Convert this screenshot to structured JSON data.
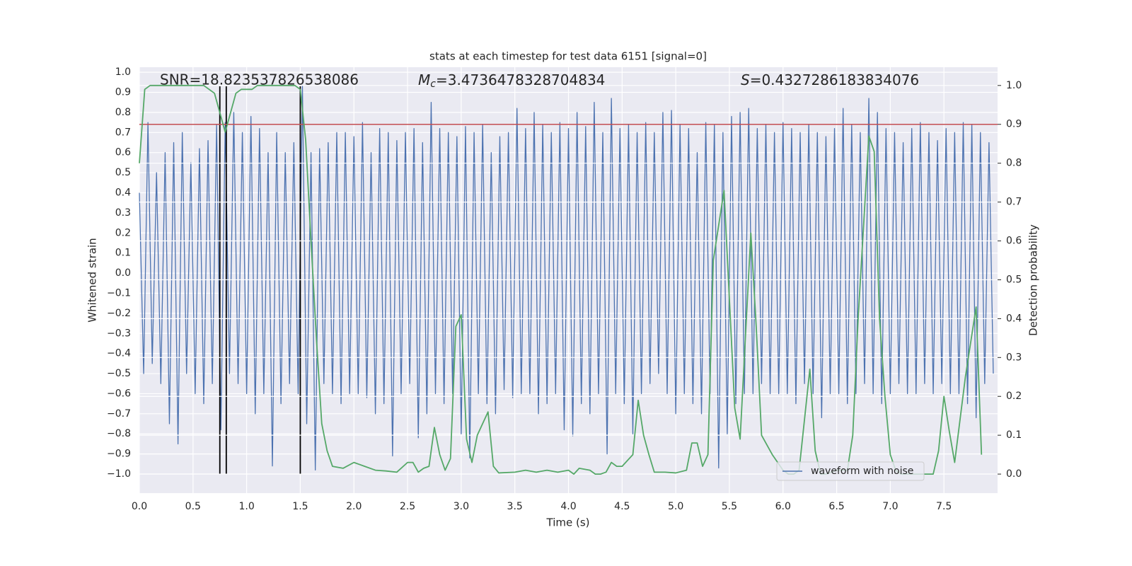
{
  "chart_data": {
    "type": "line",
    "title": "stats at each timestep for test data 6151 [signal=0]",
    "xlabel": "Time (s)",
    "ylabel": "Whitened strain",
    "y2label": "Detection probability",
    "annotations": [
      {
        "text": "SNR=18.823537826538086"
      },
      {
        "symbol": "M",
        "subscript": "c",
        "text": "=3.4736478328704834"
      },
      {
        "symbol": "S",
        "text": "=0.4327286183834076"
      }
    ],
    "xlim": [
      0,
      8.0
    ],
    "ylim": [
      -1.095,
      1.025
    ],
    "y2lim": [
      -0.049,
      1.047
    ],
    "xticks": [
      {
        "value": 0,
        "label": "0.0"
      },
      {
        "value": 0.5,
        "label": "0.5"
      },
      {
        "value": 1,
        "label": "1.0"
      },
      {
        "value": 1.5,
        "label": "1.5"
      },
      {
        "value": 2,
        "label": "2.0"
      },
      {
        "value": 2.5,
        "label": "2.5"
      },
      {
        "value": 3,
        "label": "3.0"
      },
      {
        "value": 3.5,
        "label": "3.5"
      },
      {
        "value": 4,
        "label": "4.0"
      },
      {
        "value": 4.5,
        "label": "4.5"
      },
      {
        "value": 5,
        "label": "5.0"
      },
      {
        "value": 5.5,
        "label": "5.5"
      },
      {
        "value": 6,
        "label": "6.0"
      },
      {
        "value": 6.5,
        "label": "6.5"
      },
      {
        "value": 7,
        "label": "7.0"
      },
      {
        "value": 7.5,
        "label": "7.5"
      }
    ],
    "yticks": [
      {
        "value": -1,
        "label": "−1.0"
      },
      {
        "value": -0.9,
        "label": "−0.9"
      },
      {
        "value": -0.8,
        "label": "−0.8"
      },
      {
        "value": -0.7,
        "label": "−0.7"
      },
      {
        "value": -0.6,
        "label": "−0.6"
      },
      {
        "value": -0.5,
        "label": "−0.5"
      },
      {
        "value": -0.4,
        "label": "−0.4"
      },
      {
        "value": -0.3,
        "label": "−0.3"
      },
      {
        "value": -0.2,
        "label": "−0.2"
      },
      {
        "value": -0.1,
        "label": "−0.1"
      },
      {
        "value": 0,
        "label": "0.0"
      },
      {
        "value": 0.1,
        "label": "0.1"
      },
      {
        "value": 0.2,
        "label": "0.2"
      },
      {
        "value": 0.3,
        "label": "0.3"
      },
      {
        "value": 0.4,
        "label": "0.4"
      },
      {
        "value": 0.5,
        "label": "0.5"
      },
      {
        "value": 0.6,
        "label": "0.6"
      },
      {
        "value": 0.7,
        "label": "0.7"
      },
      {
        "value": 0.8,
        "label": "0.8"
      },
      {
        "value": 0.9,
        "label": "0.9"
      },
      {
        "value": 1,
        "label": "1.0"
      }
    ],
    "y2ticks": [
      {
        "value": 0,
        "label": "0.0"
      },
      {
        "value": 0.1,
        "label": "0.1"
      },
      {
        "value": 0.2,
        "label": "0.2"
      },
      {
        "value": 0.3,
        "label": "0.3"
      },
      {
        "value": 0.4,
        "label": "0.4"
      },
      {
        "value": 0.5,
        "label": "0.5"
      },
      {
        "value": 0.6,
        "label": "0.6"
      },
      {
        "value": 0.7,
        "label": "0.7"
      },
      {
        "value": 0.8,
        "label": "0.8"
      },
      {
        "value": 0.9,
        "label": "0.9"
      },
      {
        "value": 1,
        "label": "1.0"
      }
    ],
    "grid": true,
    "legend": "lower right",
    "series": [
      {
        "name": "waveform with noise",
        "color": "#4c72b0",
        "x": [
          0,
          0.04,
          0.08,
          0.12,
          0.16,
          0.2,
          0.24,
          0.28,
          0.32,
          0.36,
          0.4,
          0.44,
          0.48,
          0.52,
          0.56,
          0.6,
          0.64,
          0.68,
          0.72,
          0.76,
          0.8,
          0.84,
          0.88,
          0.92,
          0.96,
          1.0,
          1.04,
          1.08,
          1.12,
          1.16,
          1.2,
          1.24,
          1.28,
          1.32,
          1.36,
          1.4,
          1.44,
          1.48,
          1.52,
          1.56,
          1.6,
          1.64,
          1.68,
          1.72,
          1.76,
          1.8,
          1.84,
          1.88,
          1.92,
          1.96,
          2.0,
          2.04,
          2.08,
          2.12,
          2.16,
          2.2,
          2.24,
          2.28,
          2.32,
          2.36,
          2.4,
          2.44,
          2.48,
          2.52,
          2.56,
          2.6,
          2.64,
          2.68,
          2.72,
          2.76,
          2.8,
          2.84,
          2.88,
          2.92,
          2.96,
          3.0,
          3.04,
          3.08,
          3.12,
          3.16,
          3.2,
          3.24,
          3.28,
          3.32,
          3.36,
          3.4,
          3.44,
          3.48,
          3.52,
          3.56,
          3.6,
          3.64,
          3.68,
          3.72,
          3.76,
          3.8,
          3.84,
          3.88,
          3.92,
          3.96,
          4.0,
          4.04,
          4.08,
          4.12,
          4.16,
          4.2,
          4.24,
          4.28,
          4.32,
          4.36,
          4.4,
          4.44,
          4.48,
          4.52,
          4.56,
          4.6,
          4.64,
          4.68,
          4.72,
          4.76,
          4.8,
          4.84,
          4.88,
          4.92,
          4.96,
          5.0,
          5.04,
          5.08,
          5.12,
          5.16,
          5.2,
          5.24,
          5.28,
          5.32,
          5.36,
          5.4,
          5.44,
          5.48,
          5.52,
          5.56,
          5.6,
          5.64,
          5.68,
          5.72,
          5.76,
          5.8,
          5.84,
          5.88,
          5.92,
          5.96,
          6.0,
          6.04,
          6.08,
          6.12,
          6.16,
          6.2,
          6.24,
          6.28,
          6.32,
          6.36,
          6.4,
          6.44,
          6.48,
          6.52,
          6.56,
          6.6,
          6.64,
          6.68,
          6.72,
          6.76,
          6.8,
          6.84,
          6.88,
          6.92,
          6.96,
          7.0,
          7.04,
          7.08,
          7.12,
          7.16,
          7.2,
          7.24,
          7.28,
          7.32,
          7.36,
          7.4,
          7.44,
          7.48,
          7.52,
          7.56,
          7.6,
          7.64,
          7.68,
          7.72,
          7.76,
          7.8,
          7.84,
          7.88,
          7.92,
          7.96
        ],
        "values": [
          0.4,
          -0.5,
          0.75,
          -0.45,
          0.5,
          -0.55,
          0.6,
          -0.75,
          0.65,
          -0.85,
          0.7,
          -0.5,
          0.55,
          -0.6,
          0.62,
          -0.65,
          0.66,
          -0.55,
          0.74,
          -0.78,
          0.75,
          -0.5,
          0.8,
          -0.55,
          0.7,
          -0.6,
          0.78,
          -0.7,
          0.72,
          -0.6,
          0.6,
          -0.96,
          0.7,
          -0.65,
          0.6,
          -0.55,
          0.65,
          -0.6,
          0.93,
          -0.75,
          0.6,
          -0.98,
          0.62,
          -0.55,
          0.65,
          -0.6,
          0.7,
          -0.65,
          0.7,
          -0.6,
          0.68,
          -0.6,
          0.75,
          -0.62,
          0.6,
          -0.7,
          0.72,
          -0.65,
          0.7,
          -0.91,
          0.66,
          -0.6,
          0.7,
          -0.55,
          0.72,
          -0.82,
          0.65,
          -0.7,
          0.85,
          -0.6,
          0.72,
          -0.65,
          0.7,
          -0.6,
          0.68,
          -0.8,
          0.73,
          -0.92,
          0.7,
          -0.6,
          0.74,
          -0.65,
          0.6,
          -0.7,
          0.68,
          -0.58,
          0.7,
          -0.62,
          0.82,
          -0.6,
          0.72,
          -0.6,
          0.8,
          -0.7,
          0.74,
          -0.65,
          0.7,
          -0.6,
          0.75,
          -0.78,
          0.72,
          -0.81,
          0.8,
          -0.65,
          0.73,
          -0.7,
          0.85,
          -0.6,
          0.7,
          -0.9,
          0.87,
          -0.6,
          0.72,
          -0.65,
          0.74,
          -0.8,
          0.7,
          -0.6,
          0.75,
          -0.55,
          0.7,
          -0.5,
          0.8,
          -0.6,
          0.81,
          -0.7,
          0.74,
          -0.6,
          0.72,
          -0.65,
          0.6,
          -0.7,
          0.75,
          -0.6,
          0.74,
          -0.97,
          0.7,
          -0.8,
          0.78,
          -0.65,
          0.8,
          -0.6,
          0.82,
          -0.6,
          0.72,
          -0.55,
          0.74,
          -0.6,
          0.7,
          -0.6,
          0.75,
          -0.6,
          0.72,
          -0.65,
          0.7,
          -0.55,
          0.74,
          -0.6,
          0.7,
          -0.72,
          0.68,
          -0.6,
          0.72,
          -0.6,
          0.82,
          -0.65,
          0.74,
          -0.6,
          0.7,
          -0.55,
          0.87,
          -0.6,
          0.8,
          -0.65,
          0.72,
          -0.6,
          0.7,
          -0.55,
          0.65,
          -0.6,
          0.72,
          -0.6,
          0.75,
          -0.55,
          0.7,
          -0.6,
          0.66,
          -0.55,
          0.72,
          -0.6,
          0.7,
          -0.6,
          0.75,
          -0.65,
          0.74,
          -0.72,
          0.7,
          -0.55,
          0.65,
          -0.5
        ]
      },
      {
        "color": "#55a868",
        "axis": "y2",
        "x": [
          0,
          0.05,
          0.1,
          0.2,
          0.3,
          0.4,
          0.5,
          0.6,
          0.65,
          0.7,
          0.75,
          0.8,
          0.85,
          0.9,
          0.95,
          1.0,
          1.05,
          1.1,
          1.2,
          1.3,
          1.4,
          1.45,
          1.5,
          1.55,
          1.6,
          1.65,
          1.7,
          1.75,
          1.8,
          1.9,
          2.0,
          2.1,
          2.2,
          2.3,
          2.4,
          2.5,
          2.55,
          2.6,
          2.65,
          2.7,
          2.75,
          2.8,
          2.85,
          2.9,
          2.95,
          3.0,
          3.05,
          3.1,
          3.15,
          3.25,
          3.3,
          3.35,
          3.5,
          3.6,
          3.7,
          3.8,
          3.9,
          4.0,
          4.05,
          4.1,
          4.2,
          4.25,
          4.3,
          4.35,
          4.4,
          4.45,
          4.5,
          4.6,
          4.65,
          4.7,
          4.75,
          4.8,
          4.9,
          5.0,
          5.1,
          5.15,
          5.2,
          5.25,
          5.3,
          5.35,
          5.45,
          5.55,
          5.6,
          5.7,
          5.75,
          5.8,
          5.9,
          6.0,
          6.05,
          6.1,
          6.15,
          6.25,
          6.3,
          6.35,
          6.4,
          6.5,
          6.55,
          6.6,
          6.65,
          6.7,
          6.8,
          6.85,
          6.9,
          6.95,
          7.0,
          7.05,
          7.1,
          7.2,
          7.3,
          7.4,
          7.45,
          7.5,
          7.55,
          7.6,
          7.7,
          7.8,
          7.85
        ],
        "values": [
          0.8,
          0.99,
          1.0,
          1.0,
          1.0,
          1.0,
          1.0,
          1.0,
          0.99,
          0.98,
          0.93,
          0.88,
          0.93,
          0.98,
          0.99,
          0.99,
          0.99,
          1.0,
          1.0,
          1.0,
          1.0,
          1.0,
          0.99,
          0.86,
          0.6,
          0.35,
          0.13,
          0.06,
          0.02,
          0.015,
          0.03,
          0.02,
          0.01,
          0.008,
          0.005,
          0.03,
          0.03,
          0.005,
          0.015,
          0.02,
          0.12,
          0.05,
          0.01,
          0.04,
          0.38,
          0.41,
          0.09,
          0.03,
          0.1,
          0.16,
          0.02,
          0.003,
          0.005,
          0.01,
          0.005,
          0.01,
          0.005,
          0.01,
          0.0,
          0.015,
          0.01,
          0.0,
          0.0,
          0.005,
          0.03,
          0.02,
          0.02,
          0.05,
          0.19,
          0.1,
          0.05,
          0.005,
          0.005,
          0.003,
          0.01,
          0.08,
          0.08,
          0.02,
          0.05,
          0.55,
          0.73,
          0.17,
          0.09,
          0.62,
          0.38,
          0.1,
          0.05,
          0.01,
          0.0,
          0.0,
          0.01,
          0.27,
          0.06,
          0.0,
          0.0,
          0.01,
          0.01,
          0.01,
          0.1,
          0.4,
          0.87,
          0.83,
          0.4,
          0.2,
          0.05,
          0.01,
          0.0,
          0.0,
          0.0,
          0.0,
          0.06,
          0.2,
          0.11,
          0.03,
          0.25,
          0.43,
          0.05
        ]
      }
    ],
    "hline": {
      "value": 0.9,
      "axis": "y2",
      "color": "#c44e52"
    },
    "vlines": {
      "x": [
        0.75,
        0.81,
        1.5
      ],
      "ymin": -1.0,
      "ymax": 0.93,
      "color": "#000000"
    }
  }
}
